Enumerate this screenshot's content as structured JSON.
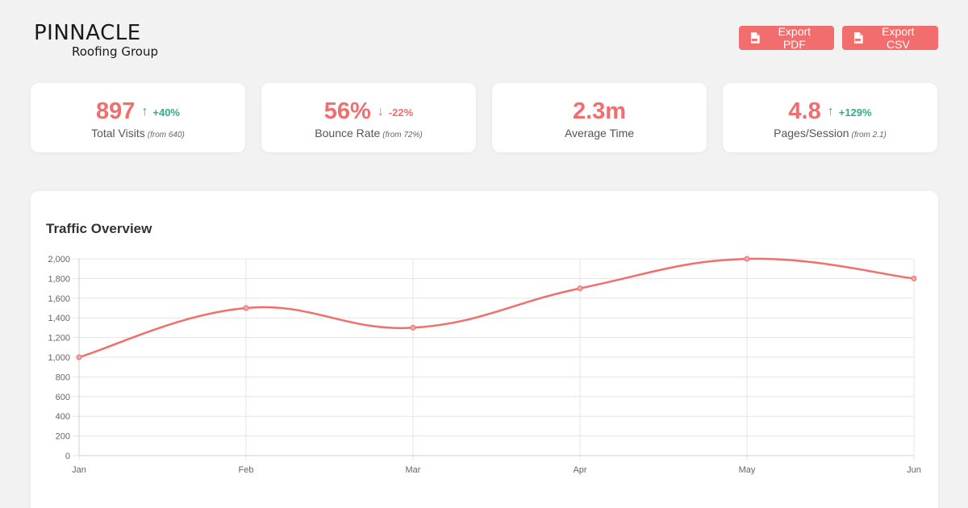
{
  "brand": {
    "name": "PINNACLE",
    "tagline": "Roofing Group"
  },
  "toolbar": {
    "export_pdf_label": "Export PDF",
    "export_csv_label": "Export CSV",
    "pdf_icon": "file-pdf-icon",
    "csv_icon": "file-csv-icon"
  },
  "colors": {
    "accent": "#f26d6d",
    "positive": "#2bb08a",
    "negative": "#f26d6d",
    "background": "#f2f2f2"
  },
  "stats": [
    {
      "value": "897",
      "direction": "up",
      "change": "+40%",
      "label": "Total Visits",
      "from": "(from 640)"
    },
    {
      "value": "56%",
      "direction": "down",
      "change": "-22%",
      "label": "Bounce Rate",
      "from": "(from 72%)"
    },
    {
      "value": "2.3m",
      "direction": "",
      "change": "",
      "label": "Average Time",
      "from": ""
    },
    {
      "value": "4.8",
      "direction": "up",
      "change": "+129%",
      "label": "Pages/Session",
      "from": "(from 2.1)"
    }
  ],
  "traffic": {
    "title": "Traffic Overview"
  },
  "chart_data": {
    "type": "line",
    "title": "Traffic Overview",
    "categories": [
      "Jan",
      "Feb",
      "Mar",
      "Apr",
      "May",
      "Jun"
    ],
    "series": [
      {
        "values": [
          1000,
          1500,
          1300,
          1700,
          2000,
          1800
        ],
        "color": "#f26d6d"
      }
    ],
    "ylim": [
      0,
      2000
    ],
    "yticks": [
      "0",
      "200",
      "400",
      "600",
      "800",
      "1,000",
      "1,200",
      "1,400",
      "1,600",
      "1,800",
      "2,000"
    ],
    "grid": true,
    "smooth": true
  }
}
